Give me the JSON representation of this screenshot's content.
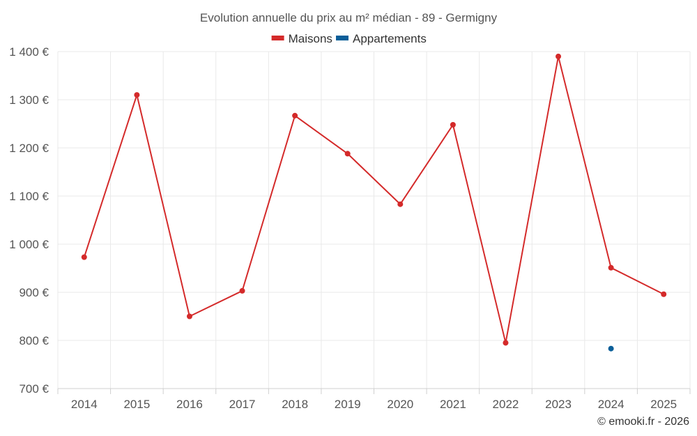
{
  "chart_data": {
    "type": "line",
    "title": "Evolution annuelle du prix au m² médian - 89 - Germigny",
    "categories": [
      "2014",
      "2015",
      "2016",
      "2017",
      "2018",
      "2019",
      "2020",
      "2021",
      "2022",
      "2023",
      "2024",
      "2025"
    ],
    "series": [
      {
        "name": "Maisons",
        "color": "#d42a2a",
        "values": [
          973,
          1310,
          850,
          903,
          1267,
          1188,
          1083,
          1248,
          795,
          1390,
          951,
          896
        ]
      },
      {
        "name": "Appartements",
        "color": "#0a5f99",
        "values": [
          null,
          null,
          null,
          null,
          null,
          null,
          null,
          null,
          null,
          null,
          783,
          null
        ]
      }
    ],
    "ylim": [
      700,
      1400
    ],
    "yticks": [
      700,
      800,
      900,
      1000,
      1100,
      1200,
      1300,
      1400
    ],
    "ytick_labels": [
      "700 €",
      "800 €",
      "900 €",
      "1 000 €",
      "1 100 €",
      "1 200 €",
      "1 300 €",
      "1 400 €"
    ],
    "grid": true,
    "legend_position": "top-center",
    "xlabel": "",
    "ylabel": "",
    "credit": "© emooki.fr - 2026"
  }
}
